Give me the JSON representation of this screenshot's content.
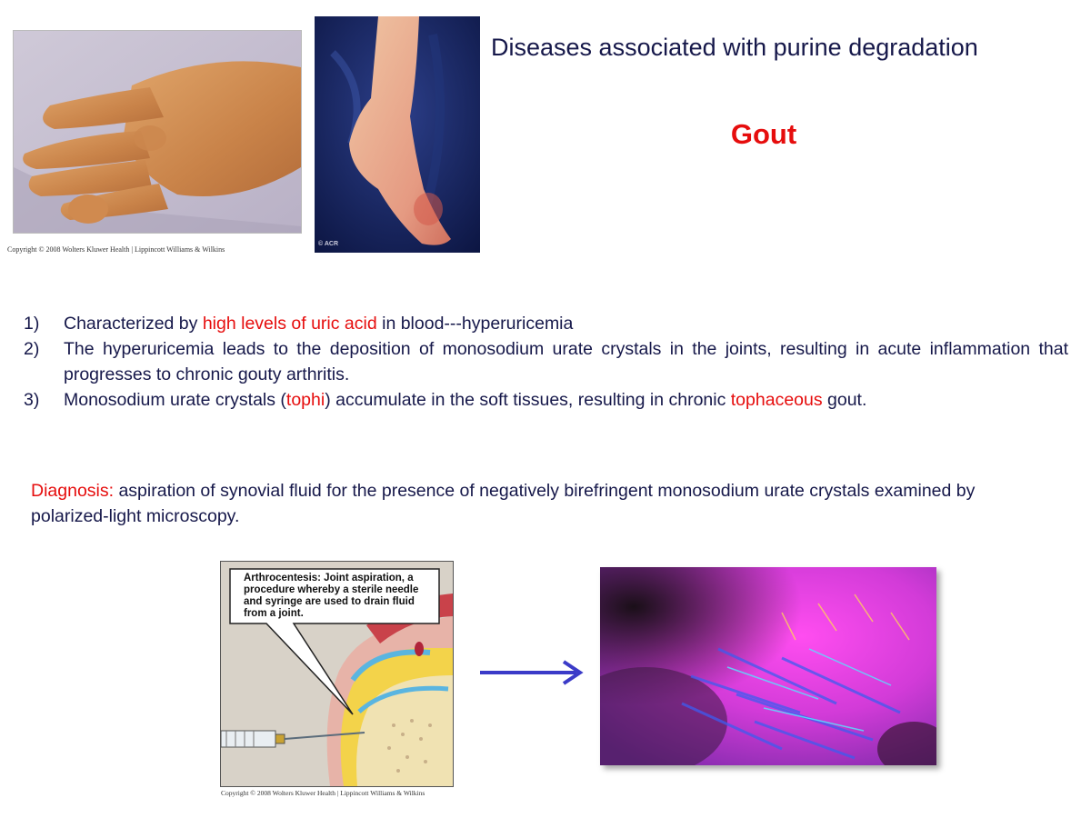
{
  "slide": {
    "title": "Diseases associated with purine degradation",
    "subtitle": "Gout"
  },
  "photos": {
    "hand_caption": "Copyright © 2008 Wolters Kluwer Health | Lippincott Williams & Wilkins",
    "foot_credit": "© ACR"
  },
  "points": [
    {
      "number": "1)",
      "parts": [
        "Characterized by ",
        "high levels of uric acid",
        " in blood---hyperuricemia"
      ]
    },
    {
      "number": "2)",
      "text": " The hyperuricemia leads to the deposition of monosodium urate crystals in the joints, resulting in acute inflammation that progresses to chronic gouty arthritis."
    },
    {
      "number": "3)",
      "parts": [
        "Monosodium urate crystals (",
        "tophi",
        ") accumulate in the soft tissues, resulting in chronic ",
        "tophaceous",
        " gout."
      ]
    }
  ],
  "diagnosis": {
    "label": "Diagnosis:",
    "text": " aspiration of synovial fluid for the presence of negatively birefringent monosodium urate crystals examined by polarized-light microscopy."
  },
  "arthrocentesis": {
    "callout": "Arthrocentesis: Joint aspiration, a procedure whereby a sterile needle and syringe are used to drain fluid from a joint.",
    "caption": "Copyright © 2008 Wolters Kluwer Health | Lippincott Williams & Wilkins"
  },
  "colors": {
    "text": "#16184a",
    "accent_red": "#e60d0d",
    "arrow": "#3b3bc8"
  }
}
